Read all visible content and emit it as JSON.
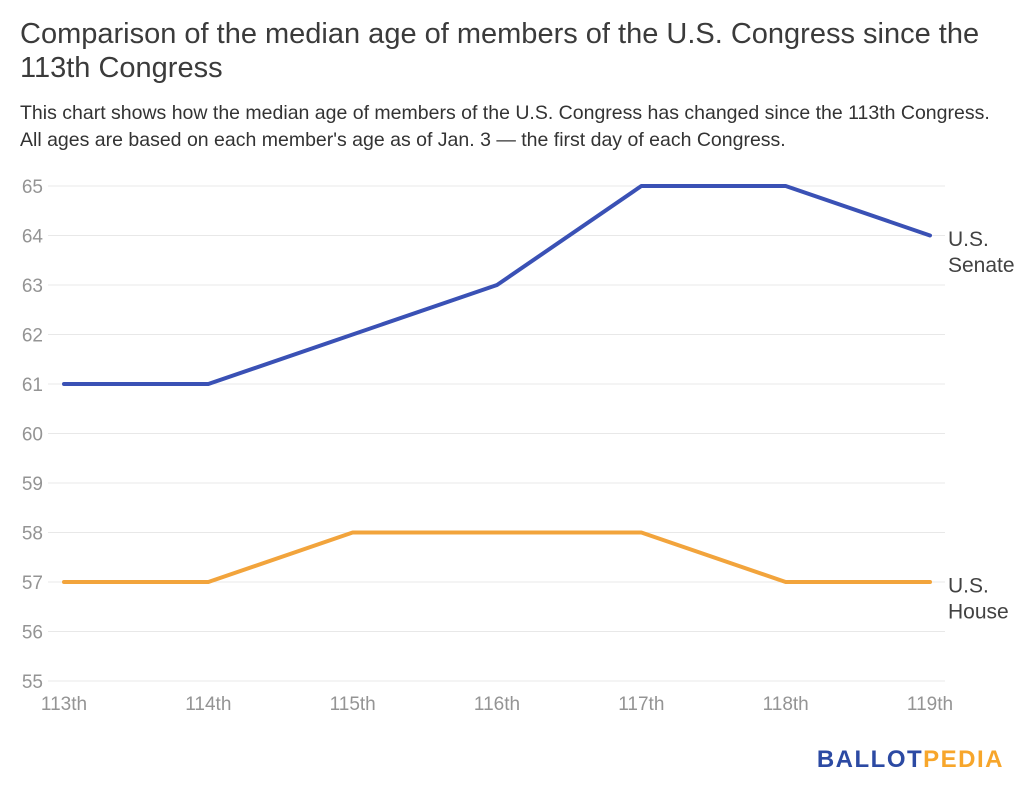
{
  "header": {
    "title_lines": [
      "Comparison of the median age of members of the U.S. Congress since the",
      "113th Congress"
    ],
    "subtitle_lines": [
      "This chart shows how the median age of members of the U.S. Congress has changed since the 113th Congress.",
      "All ages are based on each member's age as of Jan. 3 — the first day of each Congress."
    ]
  },
  "chart_data": {
    "type": "line",
    "title": "Comparison of the median age of members of the U.S. Congress since the 113th Congress",
    "subtitle": "This chart shows how the median age of members of the U.S. Congress has changed since the 113th Congress. All ages are based on each member's age as of Jan. 3 — the first day of each Congress.",
    "categories": [
      "113th",
      "114th",
      "115th",
      "116th",
      "117th",
      "118th",
      "119th"
    ],
    "xlabel": "",
    "ylabel": "",
    "ylim": [
      55,
      65
    ],
    "ytick_step": 1,
    "grid": true,
    "legend_position": "right-end-of-line-labels",
    "series": [
      {
        "name": "U.S. Senate",
        "values": [
          61,
          61,
          62,
          63,
          65,
          65,
          64
        ],
        "color": "#3A51B5",
        "end_label_lines": [
          "U.S.",
          "Senate"
        ]
      },
      {
        "name": "U.S. House",
        "values": [
          57,
          57,
          58,
          58,
          58,
          57,
          57
        ],
        "color": "#F2A43C",
        "end_label_lines": [
          "U.S.",
          "House"
        ]
      }
    ]
  },
  "style": {
    "title_color": "#3B3B3B",
    "subtitle_color": "#333333",
    "grid_color": "#E8E8E8",
    "tick_label_color": "#949494",
    "series_label_color": "#424242"
  },
  "branding": {
    "logo_part1": "BALLOT",
    "logo_part2": "PEDIA",
    "logo_part1_color": "#2C4AA3",
    "logo_part2_color": "#F7A62B"
  }
}
